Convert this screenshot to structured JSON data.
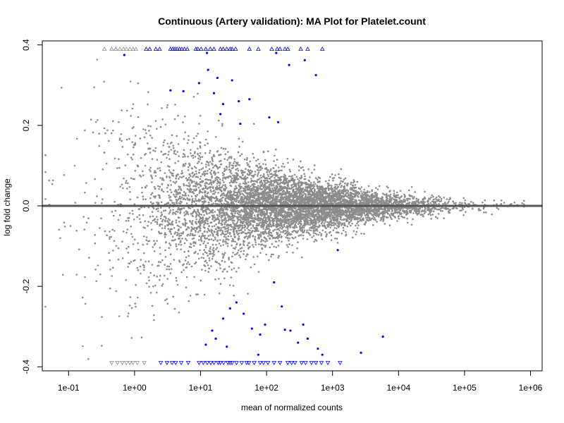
{
  "chart_data": {
    "type": "scatter",
    "title": "Continuous (Artery validation): MA Plot for Platelet.count",
    "xlabel": "mean of normalized counts",
    "ylabel": "log fold change",
    "x_scale": "log10",
    "xlim": [
      0.04,
      1500000
    ],
    "ylim": [
      -0.41,
      0.41
    ],
    "x_ticks": [
      0.1,
      1,
      10,
      100,
      1000,
      10000,
      100000,
      1000000
    ],
    "x_tick_labels": [
      "1e-01",
      "1e+00",
      "1e+01",
      "1e+02",
      "1e+03",
      "1e+04",
      "1e+05",
      "1e+06"
    ],
    "y_ticks": [
      -0.4,
      -0.2,
      0.0,
      0.2,
      0.4
    ],
    "y_tick_labels": [
      "-0.4",
      "-0.2",
      "0.0",
      "0.2",
      "0.4"
    ],
    "grid": false,
    "reference_line_y": 0,
    "colors": {
      "non_significant": "#8c8c8c",
      "significant": "#0000ff",
      "zero_line": "#555555",
      "axes": "#000000"
    },
    "capped_points_up": {
      "y": 0.39,
      "marker": "triangle-up",
      "gray_x": [
        0.35,
        0.45,
        0.52,
        0.6,
        0.68,
        0.75,
        0.85,
        0.95,
        1.05
      ],
      "blue_x": [
        1.5,
        1.7,
        2.1,
        2.4,
        3.5,
        3.8,
        4.1,
        4.4,
        4.8,
        5.2,
        5.7,
        6.3,
        8.5,
        9.1,
        10.2,
        12,
        14,
        16,
        20,
        22,
        25,
        28,
        30,
        34,
        55,
        75,
        120,
        145,
        160,
        190,
        210,
        330,
        420,
        700
      ]
    },
    "capped_points_down": {
      "y": -0.39,
      "marker": "triangle-down",
      "gray_x": [
        0.45,
        0.55,
        0.65,
        0.75,
        0.85,
        0.95,
        1.1,
        1.4
      ],
      "blue_x": [
        2.5,
        3.1,
        3.7,
        4.2,
        5.1,
        6.5,
        9.5,
        11,
        12.6,
        14.3,
        16,
        18.5,
        20,
        22.4,
        26,
        28,
        30,
        35,
        42,
        50,
        54,
        65,
        80,
        90,
        105,
        130,
        160,
        210,
        240,
        270,
        340,
        390,
        480,
        560,
        680,
        850,
        1300
      ]
    },
    "blue_points_inside": [
      {
        "x": 0.7,
        "y": 0.375
      },
      {
        "x": 3.5,
        "y": 0.287
      },
      {
        "x": 5.5,
        "y": 0.285
      },
      {
        "x": 9.5,
        "y": 0.305
      },
      {
        "x": 12.5,
        "y": 0.38
      },
      {
        "x": 13,
        "y": 0.338
      },
      {
        "x": 18,
        "y": 0.318
      },
      {
        "x": 16,
        "y": 0.28
      },
      {
        "x": 22,
        "y": 0.253
      },
      {
        "x": 30,
        "y": 0.312
      },
      {
        "x": 38,
        "y": 0.26
      },
      {
        "x": 55,
        "y": 0.265
      },
      {
        "x": 140,
        "y": 0.38
      },
      {
        "x": 220,
        "y": 0.35
      },
      {
        "x": 380,
        "y": 0.362
      },
      {
        "x": 560,
        "y": 0.325
      },
      {
        "x": 20,
        "y": 0.228
      },
      {
        "x": 110,
        "y": 0.22
      },
      {
        "x": 150,
        "y": 0.208
      },
      {
        "x": 40,
        "y": 0.204
      },
      {
        "x": 1200,
        "y": -0.11
      },
      {
        "x": 15,
        "y": -0.31
      },
      {
        "x": 17,
        "y": -0.33
      },
      {
        "x": 22,
        "y": -0.28
      },
      {
        "x": 28,
        "y": -0.255
      },
      {
        "x": 35,
        "y": -0.24
      },
      {
        "x": 45,
        "y": -0.268
      },
      {
        "x": 60,
        "y": -0.305
      },
      {
        "x": 80,
        "y": -0.32
      },
      {
        "x": 95,
        "y": -0.295
      },
      {
        "x": 130,
        "y": -0.19
      },
      {
        "x": 170,
        "y": -0.25
      },
      {
        "x": 190,
        "y": -0.308
      },
      {
        "x": 230,
        "y": -0.31
      },
      {
        "x": 300,
        "y": -0.34
      },
      {
        "x": 360,
        "y": -0.295
      },
      {
        "x": 420,
        "y": -0.33
      },
      {
        "x": 600,
        "y": -0.355
      },
      {
        "x": 700,
        "y": -0.37
      },
      {
        "x": 2700,
        "y": -0.365
      },
      {
        "x": 5800,
        "y": -0.325
      },
      {
        "x": 25,
        "y": -0.35
      },
      {
        "x": 12,
        "y": -0.345
      },
      {
        "x": 75,
        "y": -0.37
      }
    ]
  }
}
